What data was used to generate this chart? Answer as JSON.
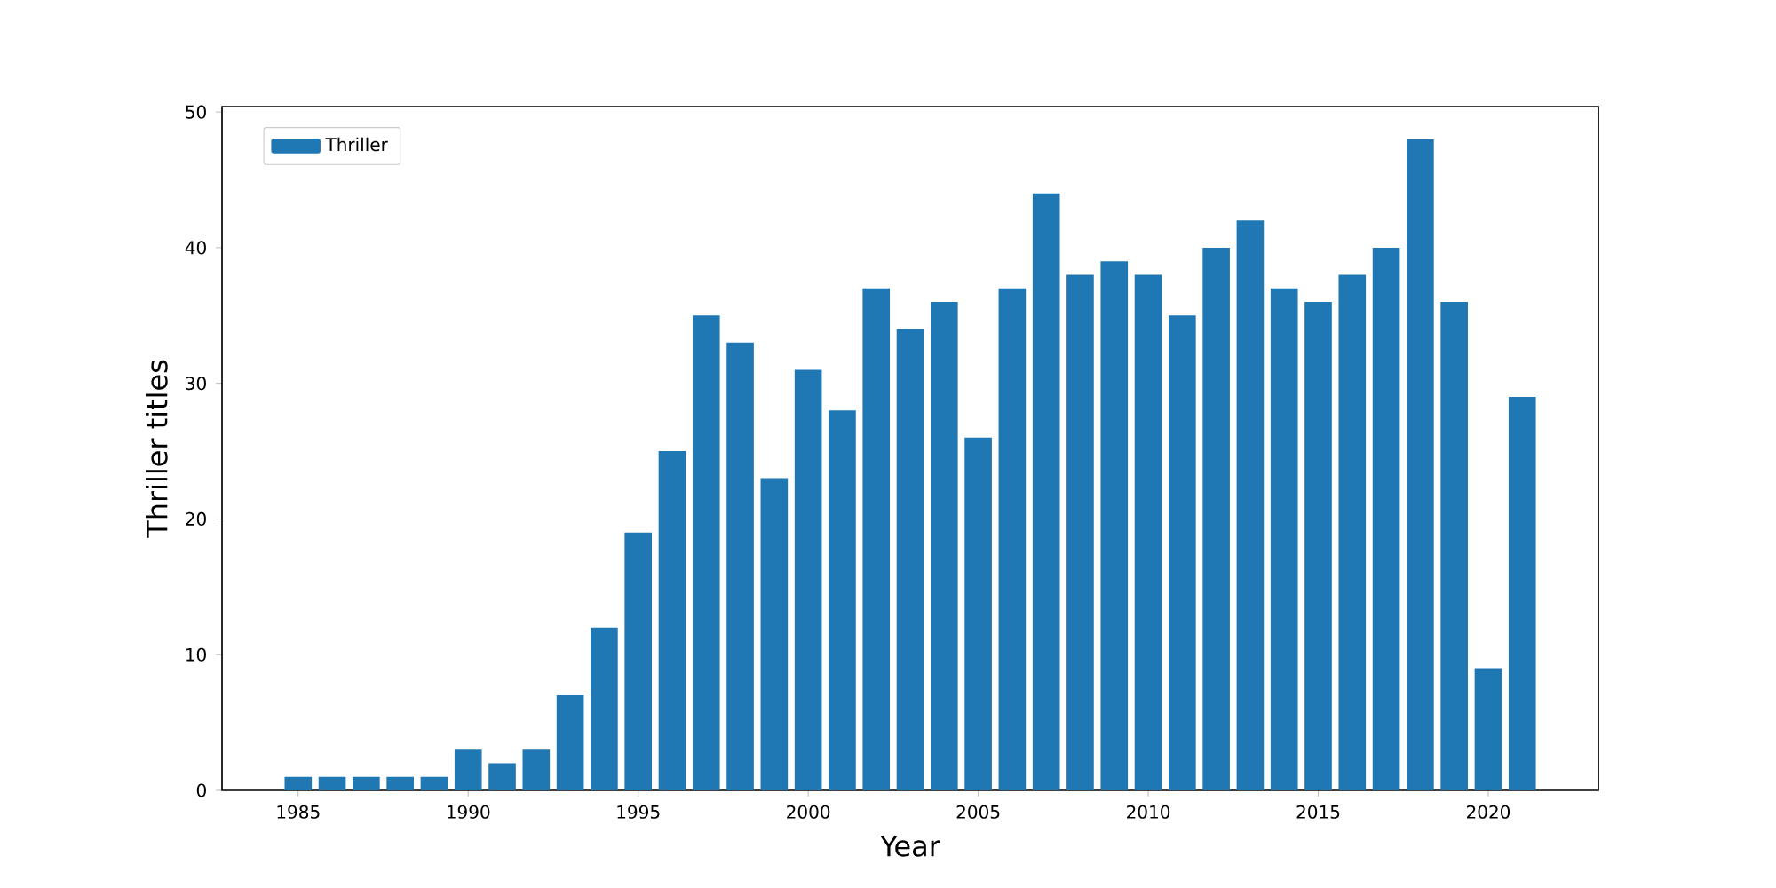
{
  "chart_data": {
    "type": "bar",
    "xlabel": "Year",
    "ylabel": "Thriller titles",
    "x": [
      1985,
      1986,
      1987,
      1988,
      1989,
      1990,
      1991,
      1992,
      1993,
      1994,
      1995,
      1996,
      1997,
      1998,
      1999,
      2000,
      2001,
      2002,
      2003,
      2004,
      2005,
      2006,
      2007,
      2008,
      2009,
      2010,
      2011,
      2012,
      2013,
      2014,
      2015,
      2016,
      2017,
      2018,
      2019,
      2020,
      2021
    ],
    "series": [
      {
        "name": "Thriller",
        "color": "#1f77b4",
        "values": [
          1,
          1,
          1,
          1,
          1,
          3,
          2,
          3,
          7,
          12,
          19,
          25,
          35,
          33,
          23,
          31,
          28,
          37,
          34,
          36,
          26,
          37,
          44,
          38,
          39,
          38,
          35,
          40,
          42,
          37,
          36,
          38,
          40,
          48,
          36,
          9,
          29
        ]
      }
    ],
    "xlim": [
      1982.76,
      2023.24
    ],
    "ylim": [
      0,
      50.4
    ],
    "xticks": [
      1985,
      1990,
      1995,
      2000,
      2005,
      2010,
      2015,
      2020
    ],
    "yticks": [
      0,
      10,
      20,
      30,
      40,
      50
    ],
    "legend": "top left"
  }
}
